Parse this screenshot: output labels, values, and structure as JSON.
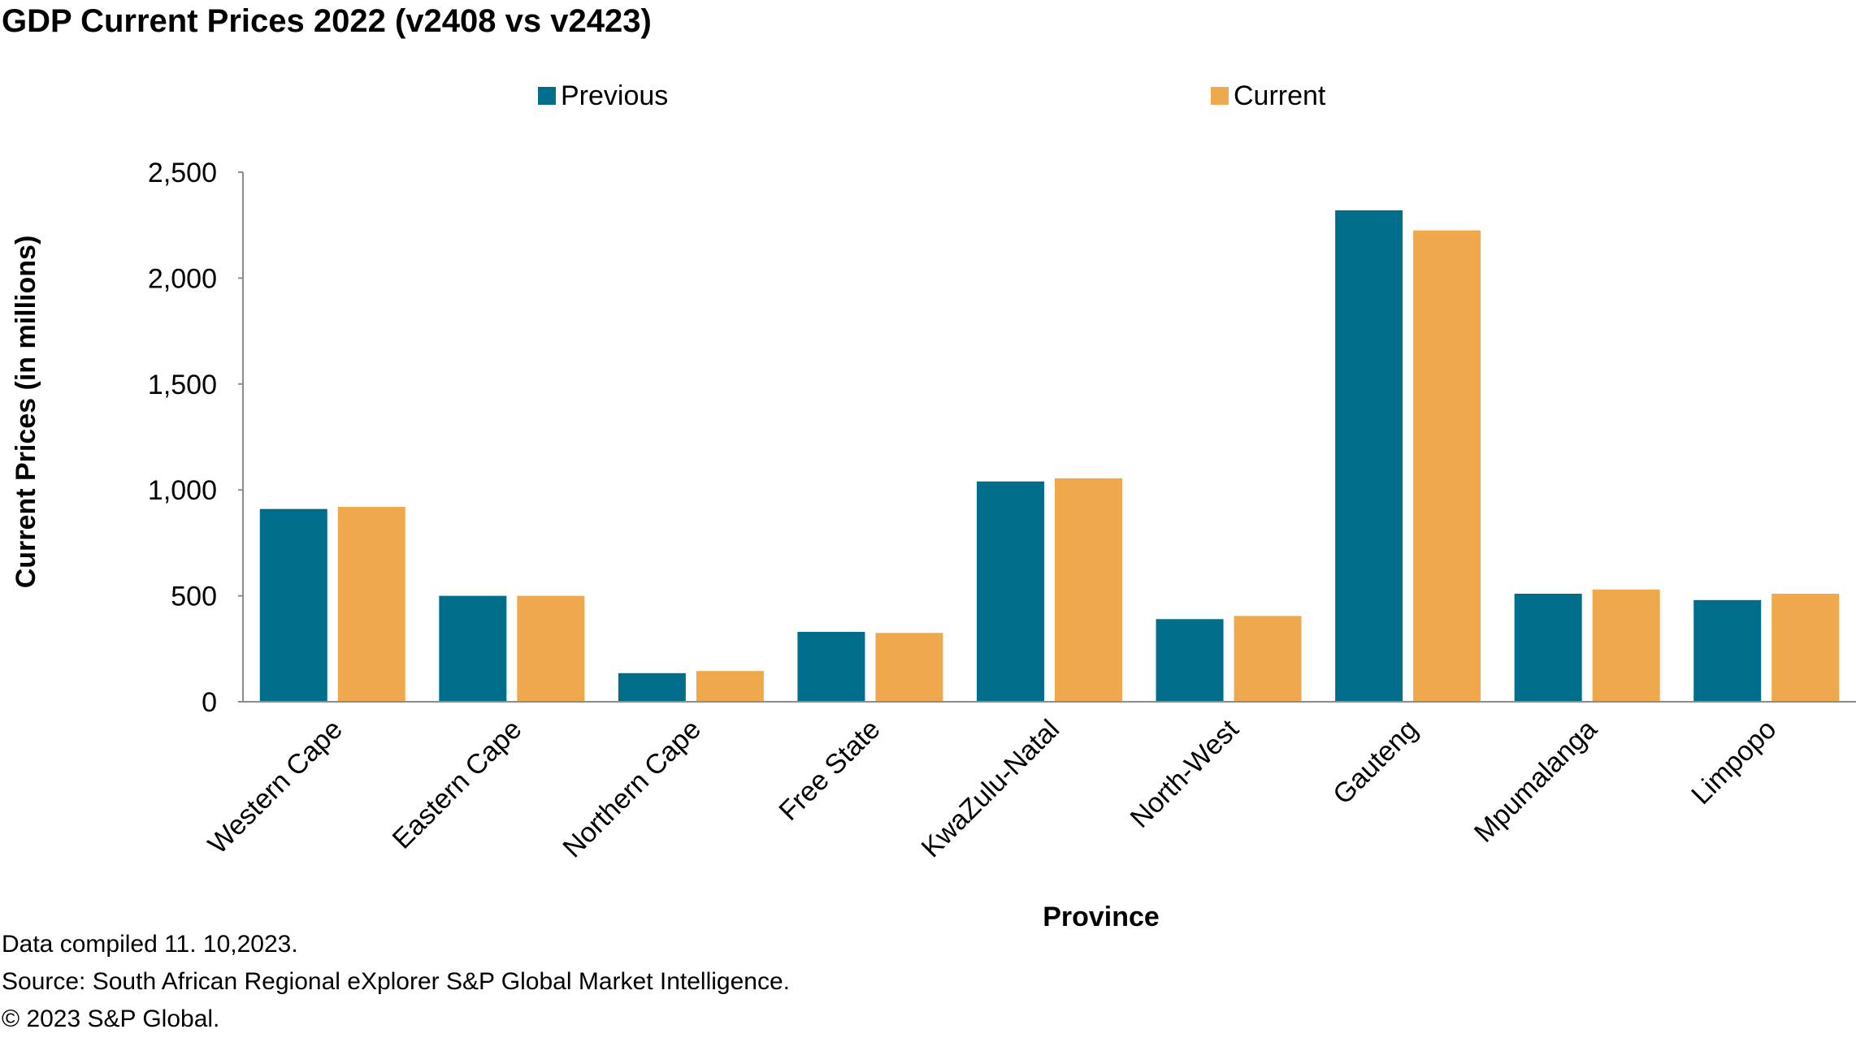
{
  "colors": {
    "previous": "#006e8a",
    "current": "#f0a84c",
    "axis": "#8c8c8c",
    "text": "#000000"
  },
  "chart_data": {
    "type": "bar",
    "title": "GDP Current Prices 2022 (v2408 vs v2423)",
    "xlabel": "Province",
    "ylabel": "Current Prices (in millions)",
    "ylim": [
      0,
      2500
    ],
    "yticks": [
      "0",
      "500",
      "1,000",
      "1,500",
      "2,000",
      "2,500"
    ],
    "grid": false,
    "legend_position": "top",
    "categories": [
      "Western Cape",
      "Eastern Cape",
      "Northern Cape",
      "Free State",
      "KwaZulu-Natal",
      "North-West",
      "Gauteng",
      "Mpumalanga",
      "Limpopo"
    ],
    "series": [
      {
        "name": "Previous",
        "values": [
          910,
          500,
          135,
          330,
          1040,
          390,
          2320,
          510,
          480
        ]
      },
      {
        "name": "Current",
        "values": [
          920,
          500,
          145,
          325,
          1055,
          405,
          2225,
          530,
          510
        ]
      }
    ]
  },
  "footnotes": {
    "line1": "Data compiled 11. 10,2023.",
    "line2": "Source: South African Regional eXplorer S&P Global Market Intelligence.",
    "line3": "© 2023 S&P Global."
  }
}
